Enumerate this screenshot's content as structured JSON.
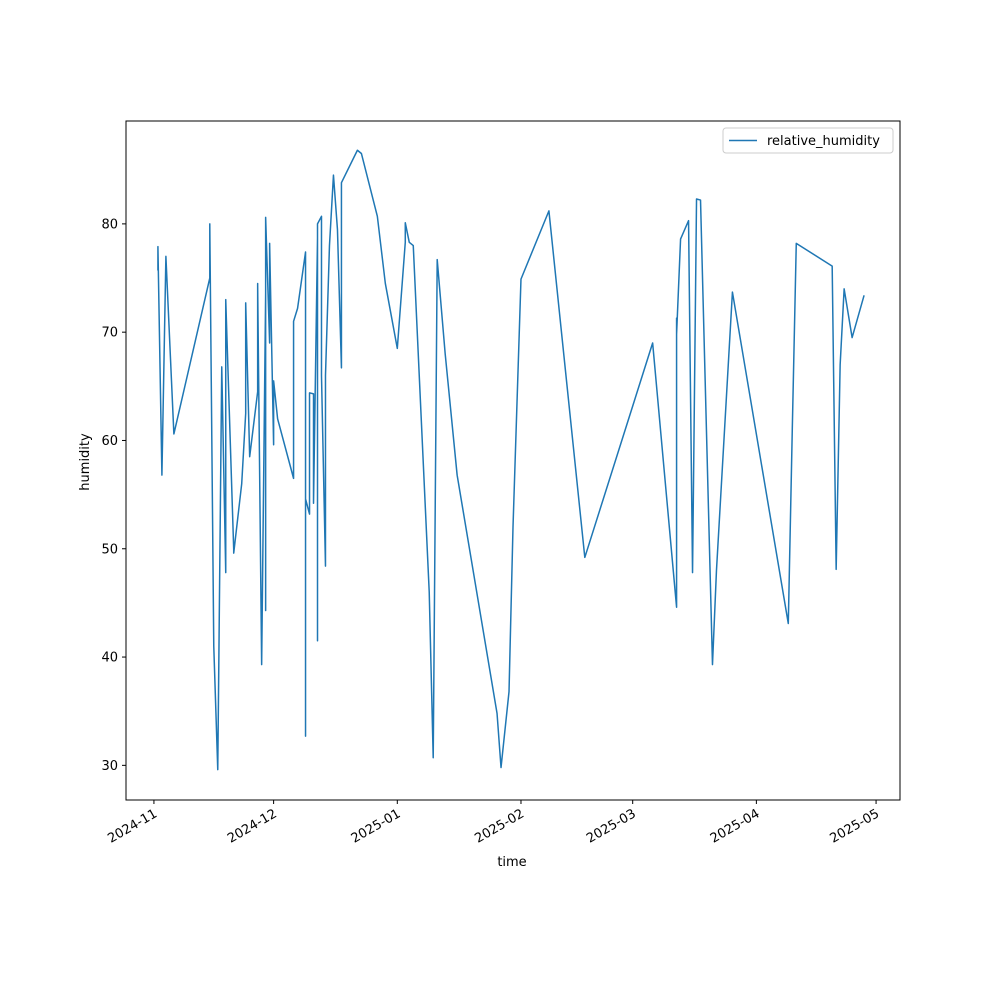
{
  "chart_data": {
    "type": "line",
    "x_label": "time",
    "y_label": "humidity",
    "x": [
      "2024-11-02",
      "2024-11-02",
      "2024-11-03",
      "2024-11-04",
      "2024-11-06",
      "2024-11-15",
      "2024-11-15",
      "2024-11-16",
      "2024-11-17",
      "2024-11-18",
      "2024-11-19",
      "2024-11-19",
      "2024-11-21",
      "2024-11-21",
      "2024-11-23",
      "2024-11-24",
      "2024-11-24",
      "2024-11-25",
      "2024-11-27",
      "2024-11-27",
      "2024-11-27",
      "2024-11-28",
      "2024-11-29",
      "2024-11-29",
      "2024-11-29",
      "2024-11-29",
      "2024-11-30",
      "2024-11-30",
      "2024-12-01",
      "2024-12-01",
      "2024-12-02",
      "2024-12-06",
      "2024-12-06",
      "2024-12-07",
      "2024-12-09",
      "2024-12-09",
      "2024-12-09",
      "2024-12-10",
      "2024-12-10",
      "2024-12-11",
      "2024-12-11",
      "2024-12-12",
      "2024-12-12",
      "2024-12-12",
      "2024-12-13",
      "2024-12-13",
      "2024-12-13",
      "2024-12-14",
      "2024-12-14",
      "2024-12-15",
      "2024-12-16",
      "2024-12-17",
      "2024-12-18",
      "2024-12-18",
      "2024-12-18",
      "2024-12-22",
      "2024-12-23",
      "2024-12-27",
      "2024-12-29",
      "2025-01-01",
      "2025-01-03",
      "2025-01-03",
      "2025-01-04",
      "2025-01-05",
      "2025-01-09",
      "2025-01-10",
      "2025-01-11",
      "2025-01-13",
      "2025-01-16",
      "2025-01-26",
      "2025-01-27",
      "2025-01-29",
      "2025-01-30",
      "2025-02-01",
      "2025-02-08",
      "2025-02-17",
      "2025-03-06",
      "2025-03-12",
      "2025-03-12",
      "2025-03-12",
      "2025-03-13",
      "2025-03-15",
      "2025-03-16",
      "2025-03-17",
      "2025-03-18",
      "2025-03-21",
      "2025-03-22",
      "2025-03-26",
      "2025-04-09",
      "2025-04-10",
      "2025-04-11",
      "2025-04-20",
      "2025-04-21",
      "2025-04-22",
      "2025-04-23",
      "2025-04-25",
      "2025-04-28"
    ],
    "series": [
      {
        "name": "relative_humidity",
        "color": "#1f77b4",
        "values": [
          75.7,
          77.9,
          56.8,
          77.0,
          60.6,
          75.0,
          80.0,
          41.0,
          29.6,
          66.8,
          47.8,
          73.0,
          49.9,
          49.6,
          56.0,
          62.5,
          72.7,
          58.5,
          64.5,
          74.5,
          74.3,
          39.3,
          73.6,
          44.3,
          44.3,
          80.6,
          69.0,
          78.2,
          59.6,
          65.5,
          62.0,
          56.5,
          71.0,
          72.2,
          77.4,
          32.7,
          54.6,
          53.2,
          64.4,
          64.3,
          54.2,
          78.7,
          41.5,
          80.0,
          80.7,
          80.2,
          66.0,
          48.4,
          66.0,
          78.0,
          84.5,
          79.5,
          66.7,
          82.1,
          83.8,
          86.8,
          86.5,
          80.7,
          74.5,
          68.5,
          78.3,
          80.1,
          78.3,
          78.0,
          46.0,
          30.7,
          76.7,
          68.0,
          56.8,
          34.8,
          29.8,
          36.8,
          52.0,
          74.9,
          81.2,
          49.2,
          69.0,
          44.6,
          71.3,
          69.8,
          78.6,
          80.3,
          47.8,
          82.3,
          82.2,
          39.3,
          48.0,
          73.7,
          43.1,
          61.0,
          78.2,
          76.1,
          48.1,
          67.0,
          74.0,
          69.5,
          73.4
        ]
      }
    ],
    "xlim": [
      "2024-10-25",
      "2025-05-07"
    ],
    "xticks": [
      {
        "value": "2024-11-01",
        "label": "2024-11"
      },
      {
        "value": "2024-12-01",
        "label": "2024-12"
      },
      {
        "value": "2025-01-01",
        "label": "2025-01"
      },
      {
        "value": "2025-02-01",
        "label": "2025-02"
      },
      {
        "value": "2025-03-01",
        "label": "2025-03"
      },
      {
        "value": "2025-04-01",
        "label": "2025-04"
      },
      {
        "value": "2025-05-01",
        "label": "2025-05"
      }
    ],
    "ylim": [
      26.8,
      89.5
    ],
    "yticks": [
      30,
      40,
      50,
      60,
      70,
      80
    ],
    "grid": false,
    "legend": "upper right"
  }
}
